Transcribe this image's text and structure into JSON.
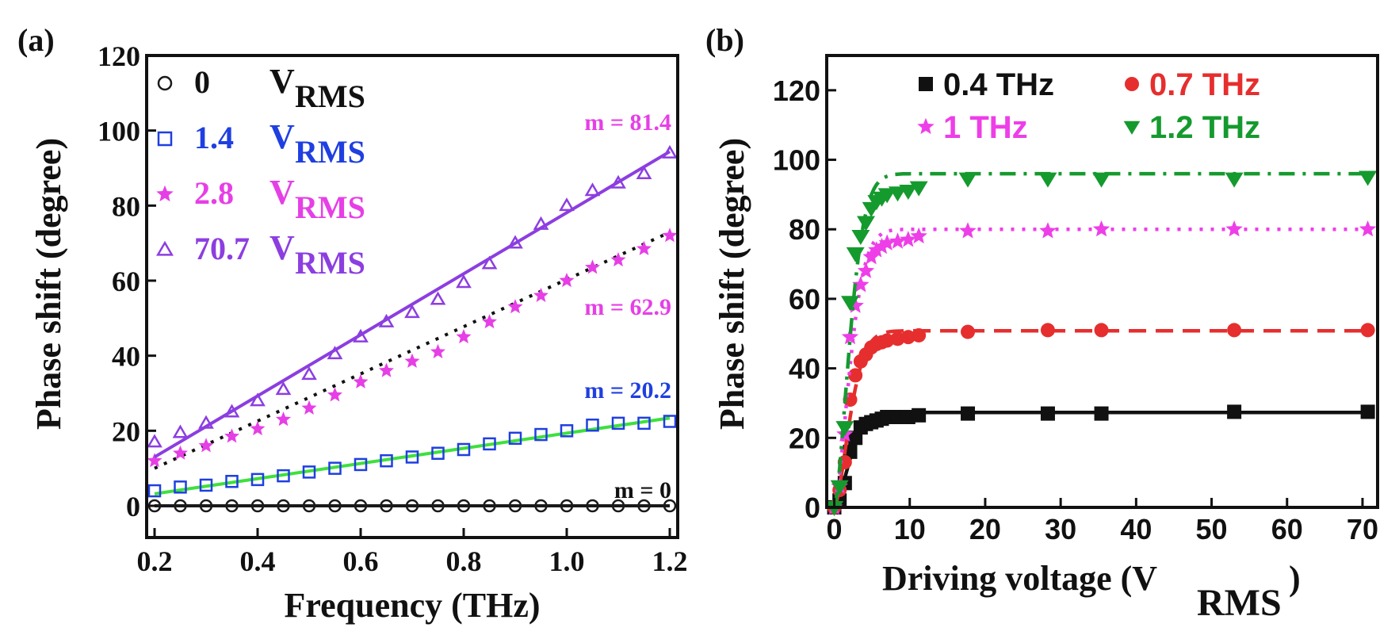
{
  "chart_data": [
    {
      "panel_label": "(a)",
      "type": "scatter",
      "xlabel": "Frequency (THz)",
      "ylabel": "Phase shift (degree)",
      "xlim": [
        0.2,
        1.2
      ],
      "ylim": [
        0,
        120
      ],
      "xticks": [
        "0.2",
        "0.4",
        "0.6",
        "0.8",
        "1.0",
        "1.2"
      ],
      "yticks": [
        "0",
        "20",
        "40",
        "60",
        "80",
        "100",
        "120"
      ],
      "legend_placement": "top-left",
      "series": [
        {
          "name": "0",
          "unit_main": "V",
          "unit_sub": "RMS",
          "marker": "circle",
          "color": "#1a1a1a",
          "slope_label": "m = 0",
          "fit": {
            "style": "solid",
            "color": "#1a1a1a",
            "y": [
              0,
              0
            ]
          },
          "x": [
            0.2,
            0.25,
            0.3,
            0.35,
            0.4,
            0.45,
            0.5,
            0.55,
            0.6,
            0.65,
            0.7,
            0.75,
            0.8,
            0.85,
            0.9,
            0.95,
            1.0,
            1.05,
            1.1,
            1.15,
            1.2
          ],
          "y": [
            0,
            0,
            0,
            0,
            0,
            0,
            0,
            0,
            0,
            0,
            0,
            0,
            0,
            0,
            0,
            0,
            0,
            0,
            0,
            0,
            0
          ]
        },
        {
          "name": "1.4",
          "unit_main": "V",
          "unit_sub": "RMS",
          "marker": "square",
          "color": "#1f3fe0",
          "slope_label": "m = 20.2",
          "fit": {
            "style": "solid",
            "color": "#3ee03e",
            "y": [
              3.2,
              23.4
            ]
          },
          "x": [
            0.2,
            0.25,
            0.3,
            0.35,
            0.4,
            0.45,
            0.5,
            0.55,
            0.6,
            0.65,
            0.7,
            0.75,
            0.8,
            0.85,
            0.9,
            0.95,
            1.0,
            1.05,
            1.1,
            1.15,
            1.2
          ],
          "y": [
            4,
            5,
            5.5,
            6.5,
            7,
            8,
            9,
            10,
            11,
            12,
            13,
            14,
            15,
            16.5,
            18,
            19,
            20,
            21.5,
            22,
            22,
            22.5
          ]
        },
        {
          "name": "2.8",
          "unit_main": "V",
          "unit_sub": "RMS",
          "marker": "star",
          "color": "#e63fe6",
          "slope_label": "m = 62.9",
          "fit": {
            "style": "dotted",
            "color": "#111111",
            "y": [
              10,
              72.9
            ]
          },
          "x": [
            0.2,
            0.25,
            0.3,
            0.35,
            0.4,
            0.45,
            0.5,
            0.55,
            0.6,
            0.65,
            0.7,
            0.75,
            0.8,
            0.85,
            0.9,
            0.95,
            1.0,
            1.05,
            1.1,
            1.15,
            1.2
          ],
          "y": [
            12,
            14,
            16,
            18.5,
            20.5,
            23,
            26,
            29.5,
            33,
            36,
            38.5,
            41,
            45,
            49,
            53,
            56,
            60,
            63.5,
            65.5,
            68.5,
            72
          ]
        },
        {
          "name": "70.7",
          "unit_main": "V",
          "unit_sub": "RMS",
          "marker": "triangle",
          "color": "#8c3ee0",
          "slope_label": "m = 81.4",
          "fit": {
            "style": "solid",
            "color": "#8c3ee0",
            "y": [
              13,
              94.4
            ]
          },
          "x": [
            0.2,
            0.25,
            0.3,
            0.35,
            0.4,
            0.45,
            0.5,
            0.55,
            0.6,
            0.65,
            0.7,
            0.75,
            0.8,
            0.85,
            0.9,
            0.95,
            1.0,
            1.05,
            1.1,
            1.15,
            1.2
          ],
          "y": [
            17,
            19.5,
            22,
            25,
            28,
            31,
            35,
            40.5,
            45,
            49,
            51.5,
            55,
            59.5,
            64.5,
            70,
            75,
            80,
            84,
            86,
            88.5,
            94
          ]
        }
      ]
    },
    {
      "panel_label": "(b)",
      "type": "line",
      "xlabel_main": "Driving voltage (V",
      "xlabel_sub": "RMS",
      "xlabel_end": ")",
      "ylabel": "Phase shift (degree)",
      "xlim": [
        -1,
        72
      ],
      "ylim": [
        0,
        130
      ],
      "xticks": [
        "0",
        "10",
        "20",
        "30",
        "40",
        "50",
        "60",
        "70"
      ],
      "yticks": [
        "0",
        "20",
        "40",
        "60",
        "80",
        "100",
        "120"
      ],
      "legend_placement": "top",
      "series": [
        {
          "name": "0.4 THz",
          "marker": "square",
          "color": "#111111",
          "line_style": "solid",
          "x": [
            0,
            0.7,
            1.4,
            2.1,
            2.8,
            3.5,
            4.2,
            4.9,
            5.6,
            6.3,
            7,
            8.4,
            9.8,
            11.2,
            17.7,
            28.3,
            35.4,
            53,
            70.7
          ],
          "y": [
            0,
            2,
            7,
            16,
            20,
            23,
            24,
            24.5,
            25,
            25.5,
            26,
            26,
            26,
            26.5,
            27,
            27,
            27,
            27.5,
            27.5
          ],
          "fit_y_max": 27.3
        },
        {
          "name": "0.7 THz",
          "marker": "circle",
          "color": "#e62e2e",
          "line_style": "dashed",
          "x": [
            0,
            0.7,
            1.4,
            2.1,
            2.8,
            3.5,
            4.2,
            4.9,
            5.6,
            6.3,
            7,
            8.4,
            9.8,
            11.2,
            17.7,
            28.3,
            35.4,
            53,
            70.7
          ],
          "y": [
            0,
            5,
            13,
            31,
            38,
            42,
            44,
            46,
            47,
            47.5,
            48,
            48.5,
            49,
            49.5,
            50.5,
            51,
            51,
            51,
            51
          ],
          "fit_y_max": 50.8
        },
        {
          "name": "1 THz",
          "marker": "star",
          "color": "#ee3ee8",
          "line_style": "dotted",
          "x": [
            0,
            0.7,
            1.4,
            2.1,
            2.8,
            3.5,
            4.2,
            4.9,
            5.6,
            6.3,
            7,
            8.4,
            9.8,
            11.2,
            17.7,
            28.3,
            35.4,
            53,
            70.7
          ],
          "y": [
            0,
            6,
            21,
            49,
            58,
            64,
            68,
            72,
            74,
            75,
            76,
            76.5,
            77,
            78,
            79.5,
            79.5,
            80,
            80,
            80
          ],
          "fit_y_max": 80
        },
        {
          "name": "1.2 THz",
          "marker": "triangle-down",
          "color": "#159a2e",
          "line_style": "dashdot",
          "x": [
            0,
            0.7,
            1.4,
            2.1,
            2.8,
            3.5,
            4.2,
            4.9,
            5.6,
            6.3,
            7,
            8.4,
            9.8,
            11.2,
            17.7,
            28.3,
            35.4,
            53,
            70.7
          ],
          "y": [
            0,
            6,
            23,
            59,
            73,
            78,
            82,
            86,
            88,
            89,
            90,
            90.5,
            91,
            92,
            94.5,
            94.5,
            94.5,
            94.5,
            95
          ],
          "fit_y_max": 96
        }
      ]
    }
  ]
}
